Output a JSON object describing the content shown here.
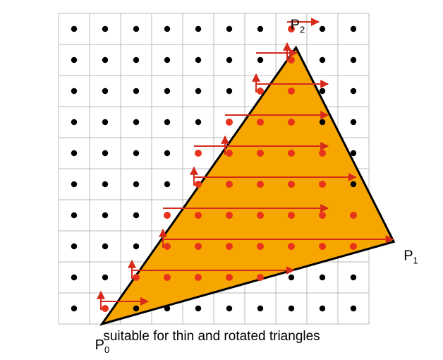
{
  "caption": "suitable for thin and rotated triangles",
  "vertices": [
    {
      "id": "p0",
      "name": "P",
      "sub": "0",
      "col": 0.9,
      "row": 9.5
    },
    {
      "id": "p1",
      "name": "P",
      "sub": "1",
      "col": 10.3,
      "row": 6.85
    },
    {
      "id": "p2",
      "name": "P",
      "sub": "2",
      "col": 7.15,
      "row": 0.6
    }
  ],
  "grid": {
    "cols": 10,
    "rows": 10
  },
  "colors": {
    "grid_line": "#b8b8b8",
    "dot": "#000000",
    "covered_dot": "#e8331c",
    "triangle_fill": "#f7a600",
    "triangle_stroke": "#000000",
    "arrow": "#d62a1a"
  },
  "covered_rows": [
    {
      "row": 9,
      "start_col": 1,
      "dots": [
        1
      ],
      "arrow_end_col": 2.2
    },
    {
      "row": 8,
      "start_col": 2,
      "dots": [
        2,
        3,
        4,
        5,
        6
      ],
      "arrow_end_col": 6.9
    },
    {
      "row": 7,
      "start_col": 3,
      "dots": [
        3,
        4,
        5,
        6,
        7,
        8,
        9
      ],
      "arrow_end_col": 10.1
    },
    {
      "row": 6,
      "start_col": 3,
      "dots": [
        3,
        4,
        5,
        6,
        7,
        8,
        9
      ],
      "arrow_end_col": 8.0
    },
    {
      "row": 5,
      "start_col": 4,
      "dots": [
        4,
        5,
        6,
        7,
        8
      ],
      "arrow_end_col": 8.9
    },
    {
      "row": 4,
      "start_col": 4,
      "dots": [
        4,
        5,
        6,
        7,
        8
      ],
      "arrow_end_col": 8.0
    },
    {
      "row": 3,
      "start_col": 5,
      "dots": [
        5,
        6,
        7
      ],
      "arrow_end_col": 8.0
    },
    {
      "row": 2,
      "start_col": 6,
      "dots": [
        6,
        7
      ],
      "arrow_end_col": 8.0
    },
    {
      "row": 1,
      "start_col": 6,
      "dots": [
        7
      ],
      "arrow_end_col": 7.0
    },
    {
      "row": 0,
      "start_col": 7,
      "dots": [
        7
      ],
      "arrow_end_col": 7.7
    }
  ],
  "up_arrows": [
    {
      "col": 1,
      "from_row": 9,
      "to_row": 8
    },
    {
      "col": 2,
      "from_row": 8,
      "to_row": 7
    },
    {
      "col": 3,
      "from_row": 7,
      "to_row": 6
    },
    {
      "col": 4,
      "from_row": 5,
      "to_row": 4
    },
    {
      "col": 5,
      "from_row": 4,
      "to_row": 3
    },
    {
      "col": 6,
      "from_row": 2,
      "to_row": 1
    },
    {
      "col": 7,
      "from_row": 1,
      "to_row": 0
    }
  ]
}
